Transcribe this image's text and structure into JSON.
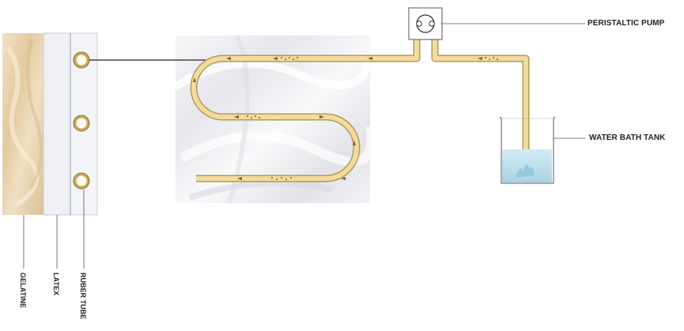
{
  "labels": {
    "pump": "PERISTALTIC PUMP",
    "tank": "WATER BATH TANK",
    "gelatine": "GELATINE",
    "latex": "LATEX",
    "tube": "RUBER TUBE"
  },
  "colors": {
    "tube_fill": "#f1dc9e",
    "tube_edge": "#b49a57",
    "gelatine": "#ead7b4",
    "water": "#bfe0ec",
    "leader": "#555555"
  }
}
